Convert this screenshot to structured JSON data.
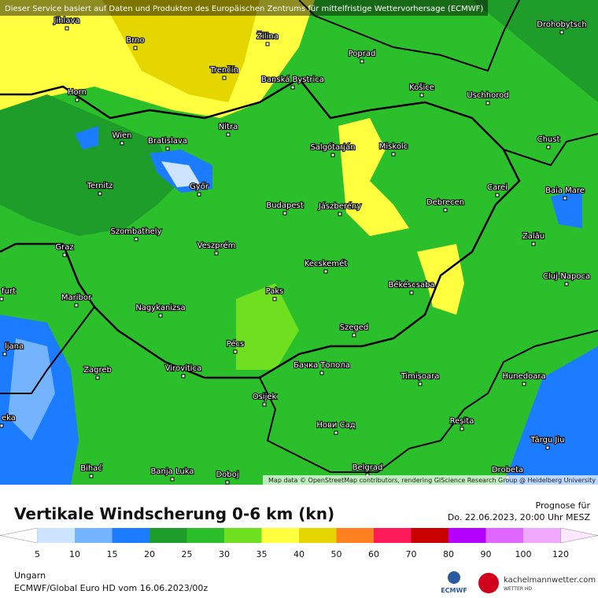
{
  "header": {
    "notice": "Dieser Service basiert auf Daten und Produkten des Europäischen Zentrums für mittelfristige Wettervorhersage (ECMWF)",
    "attribution": "Map data © OpenStreetMap contributors, rendering GIScience Research Group @ Heidelberg University"
  },
  "cities": [
    "Jihlava",
    "Brno",
    "Žilina",
    "Poprad",
    "Drohobytsch",
    "Trenčín",
    "Banská Bystrica",
    "Košice",
    "Uschhorod",
    "Horn",
    "Nitra",
    "Wien",
    "Bratislava",
    "Salgótarján",
    "Miskolc",
    "Chust",
    "Ternitz",
    "Győr",
    "Carei",
    "Baia Mare",
    "Budapest",
    "Jászberény",
    "Debrecen",
    "Szombathely",
    "Zalău",
    "Graz",
    "Veszprém",
    "Kecskemét",
    "Cluj-Napoca",
    "Maribor",
    "Paks",
    "Békéscsaba",
    "Nagykanizsa",
    "Pécs",
    "Szeged",
    "Zagreb",
    "Virovitica",
    "Бачка Топола",
    "Timișoara",
    "Hunedoara",
    "Osijek",
    "Нови Сад",
    "Reșita",
    "Târgu Jiu",
    "Bihać",
    "Banja Luka",
    "Doboj",
    "Belgrad",
    "Drobeta",
    "ljana",
    "eka",
    "furt"
  ],
  "legend": {
    "title": "Vertikale Windscherung 0-6 km (kn)",
    "ticks": [
      5,
      10,
      15,
      20,
      25,
      30,
      35,
      40,
      50,
      60,
      70,
      80,
      90,
      100,
      120
    ],
    "colors": [
      "#ffffff",
      "#cce4ff",
      "#74b4ff",
      "#1c7cff",
      "#1f9d2a",
      "#2bbf2b",
      "#6ee020",
      "#ffff40",
      "#e6d600",
      "#ff8020",
      "#ff1a5a",
      "#c80000",
      "#b400ff",
      "#de66ff",
      "#f0a8ff",
      "#ffe8ff"
    ]
  },
  "forecast": {
    "label": "Prognose für",
    "time": "Do. 22.06.2023, 20:00 Uhr MESZ"
  },
  "footer": {
    "region": "Ungarn",
    "model": "ECMWF/Global Euro HD vom  16.06.2023/00z",
    "ecmwf": "ECMWF",
    "site": "kachelmannwetter.com",
    "site_sub": "WETTER HD"
  }
}
